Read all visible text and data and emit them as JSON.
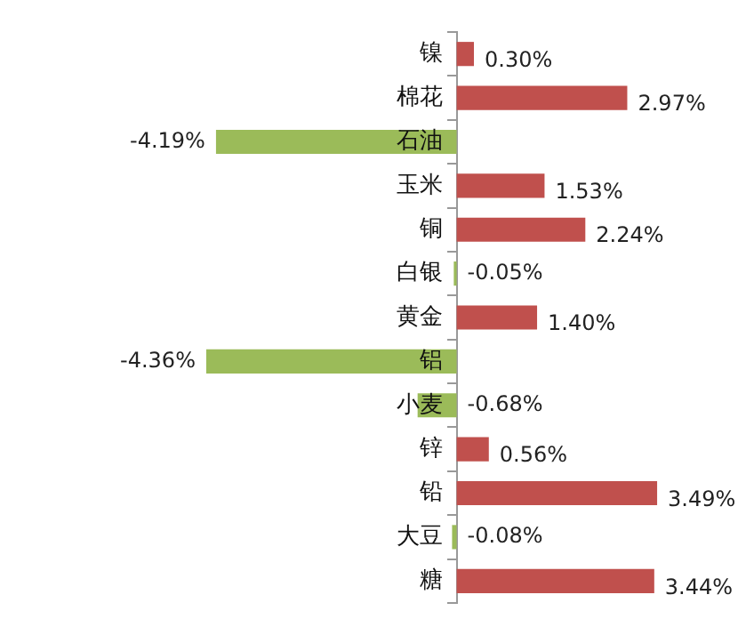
{
  "chart_data": {
    "type": "bar",
    "orientation": "horizontal",
    "categories": [
      "镍",
      "棉花",
      "石油",
      "玉米",
      "铜",
      "白银",
      "黄金",
      "铝",
      "小麦",
      "锌",
      "铅",
      "大豆",
      "糖"
    ],
    "values": [
      0.3,
      2.97,
      -4.19,
      1.53,
      2.24,
      -0.05,
      1.4,
      -4.36,
      -0.68,
      0.56,
      3.49,
      -0.08,
      3.44
    ],
    "value_labels": [
      "0.30%",
      "2.97%",
      "-4.19%",
      "1.53%",
      "2.24%",
      "-0.05%",
      "1.40%",
      "-4.36%",
      "-0.68%",
      "0.56%",
      "3.49%",
      "-0.08%",
      "3.44%"
    ],
    "colors": [
      "#c0504d",
      "#c0504d",
      "#9bbb59",
      "#c0504d",
      "#c0504d",
      "#9bbb59",
      "#c0504d",
      "#9bbb59",
      "#9bbb59",
      "#c0504d",
      "#c0504d",
      "#9bbb59",
      "#c0504d"
    ],
    "grid": false,
    "legend": false
  }
}
